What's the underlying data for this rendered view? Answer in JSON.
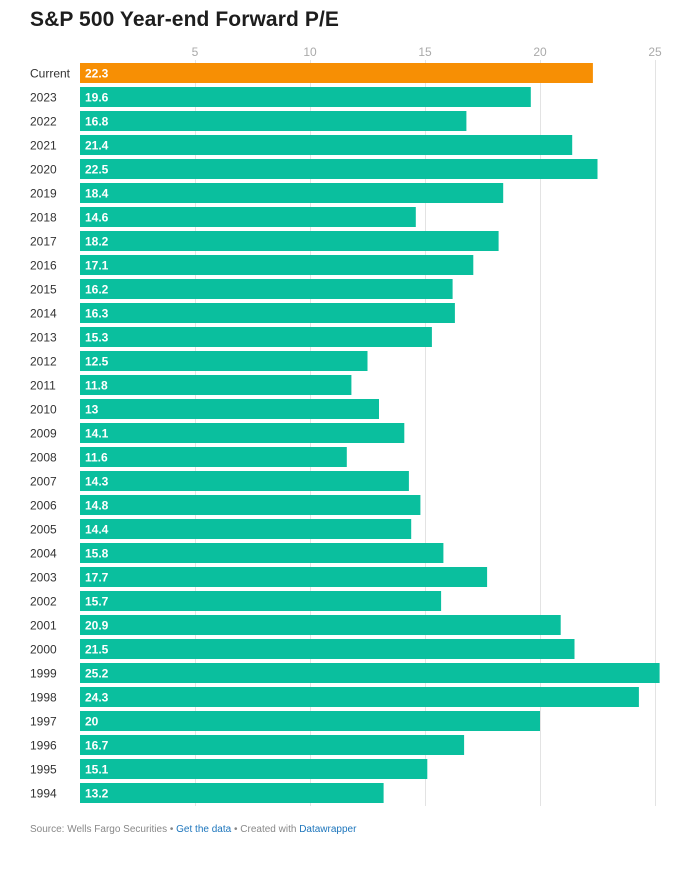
{
  "chart_data": {
    "type": "bar",
    "orientation": "horizontal",
    "title": "S&P 500 Year-end Forward P/E",
    "xlabel": "",
    "ylabel": "",
    "xlim": [
      0,
      25.5
    ],
    "x_ticks": [
      5,
      10,
      15,
      20,
      25
    ],
    "grid": "vertical",
    "categories": [
      "Current",
      "2023",
      "2022",
      "2021",
      "2020",
      "2019",
      "2018",
      "2017",
      "2016",
      "2015",
      "2014",
      "2013",
      "2012",
      "2011",
      "2010",
      "2009",
      "2008",
      "2007",
      "2006",
      "2005",
      "2004",
      "2003",
      "2002",
      "2001",
      "2000",
      "1999",
      "1998",
      "1997",
      "1996",
      "1995",
      "1994"
    ],
    "values": [
      22.3,
      19.6,
      16.8,
      21.4,
      22.5,
      18.4,
      14.6,
      18.2,
      17.1,
      16.2,
      16.3,
      15.3,
      12.5,
      11.8,
      13,
      14.1,
      11.6,
      14.3,
      14.8,
      14.4,
      15.8,
      17.7,
      15.7,
      20.9,
      21.5,
      25.2,
      24.3,
      20,
      16.7,
      15.1,
      13.2
    ],
    "value_labels": [
      "22.3",
      "19.6",
      "16.8",
      "21.4",
      "22.5",
      "18.4",
      "14.6",
      "18.2",
      "17.1",
      "16.2",
      "16.3",
      "15.3",
      "12.5",
      "11.8",
      "13",
      "14.1",
      "11.6",
      "14.3",
      "14.8",
      "14.4",
      "15.8",
      "17.7",
      "15.7",
      "20.9",
      "21.5",
      "25.2",
      "24.3",
      "20",
      "16.7",
      "15.1",
      "13.2"
    ],
    "highlight_category": "Current"
  },
  "colors": {
    "bar": "#0abf9e",
    "highlight": "#f78f04",
    "grid": "#e3e3e3",
    "tick_text": "#aaaaaa",
    "category_text": "#333333",
    "value_text": "#ffffff",
    "link": "#1c75bc"
  },
  "footer": {
    "source": "Source: Wells Fargo Securities",
    "separator": " • ",
    "get_data": "Get the data",
    "created_with": "Created with",
    "datawrapper": "Datawrapper"
  }
}
